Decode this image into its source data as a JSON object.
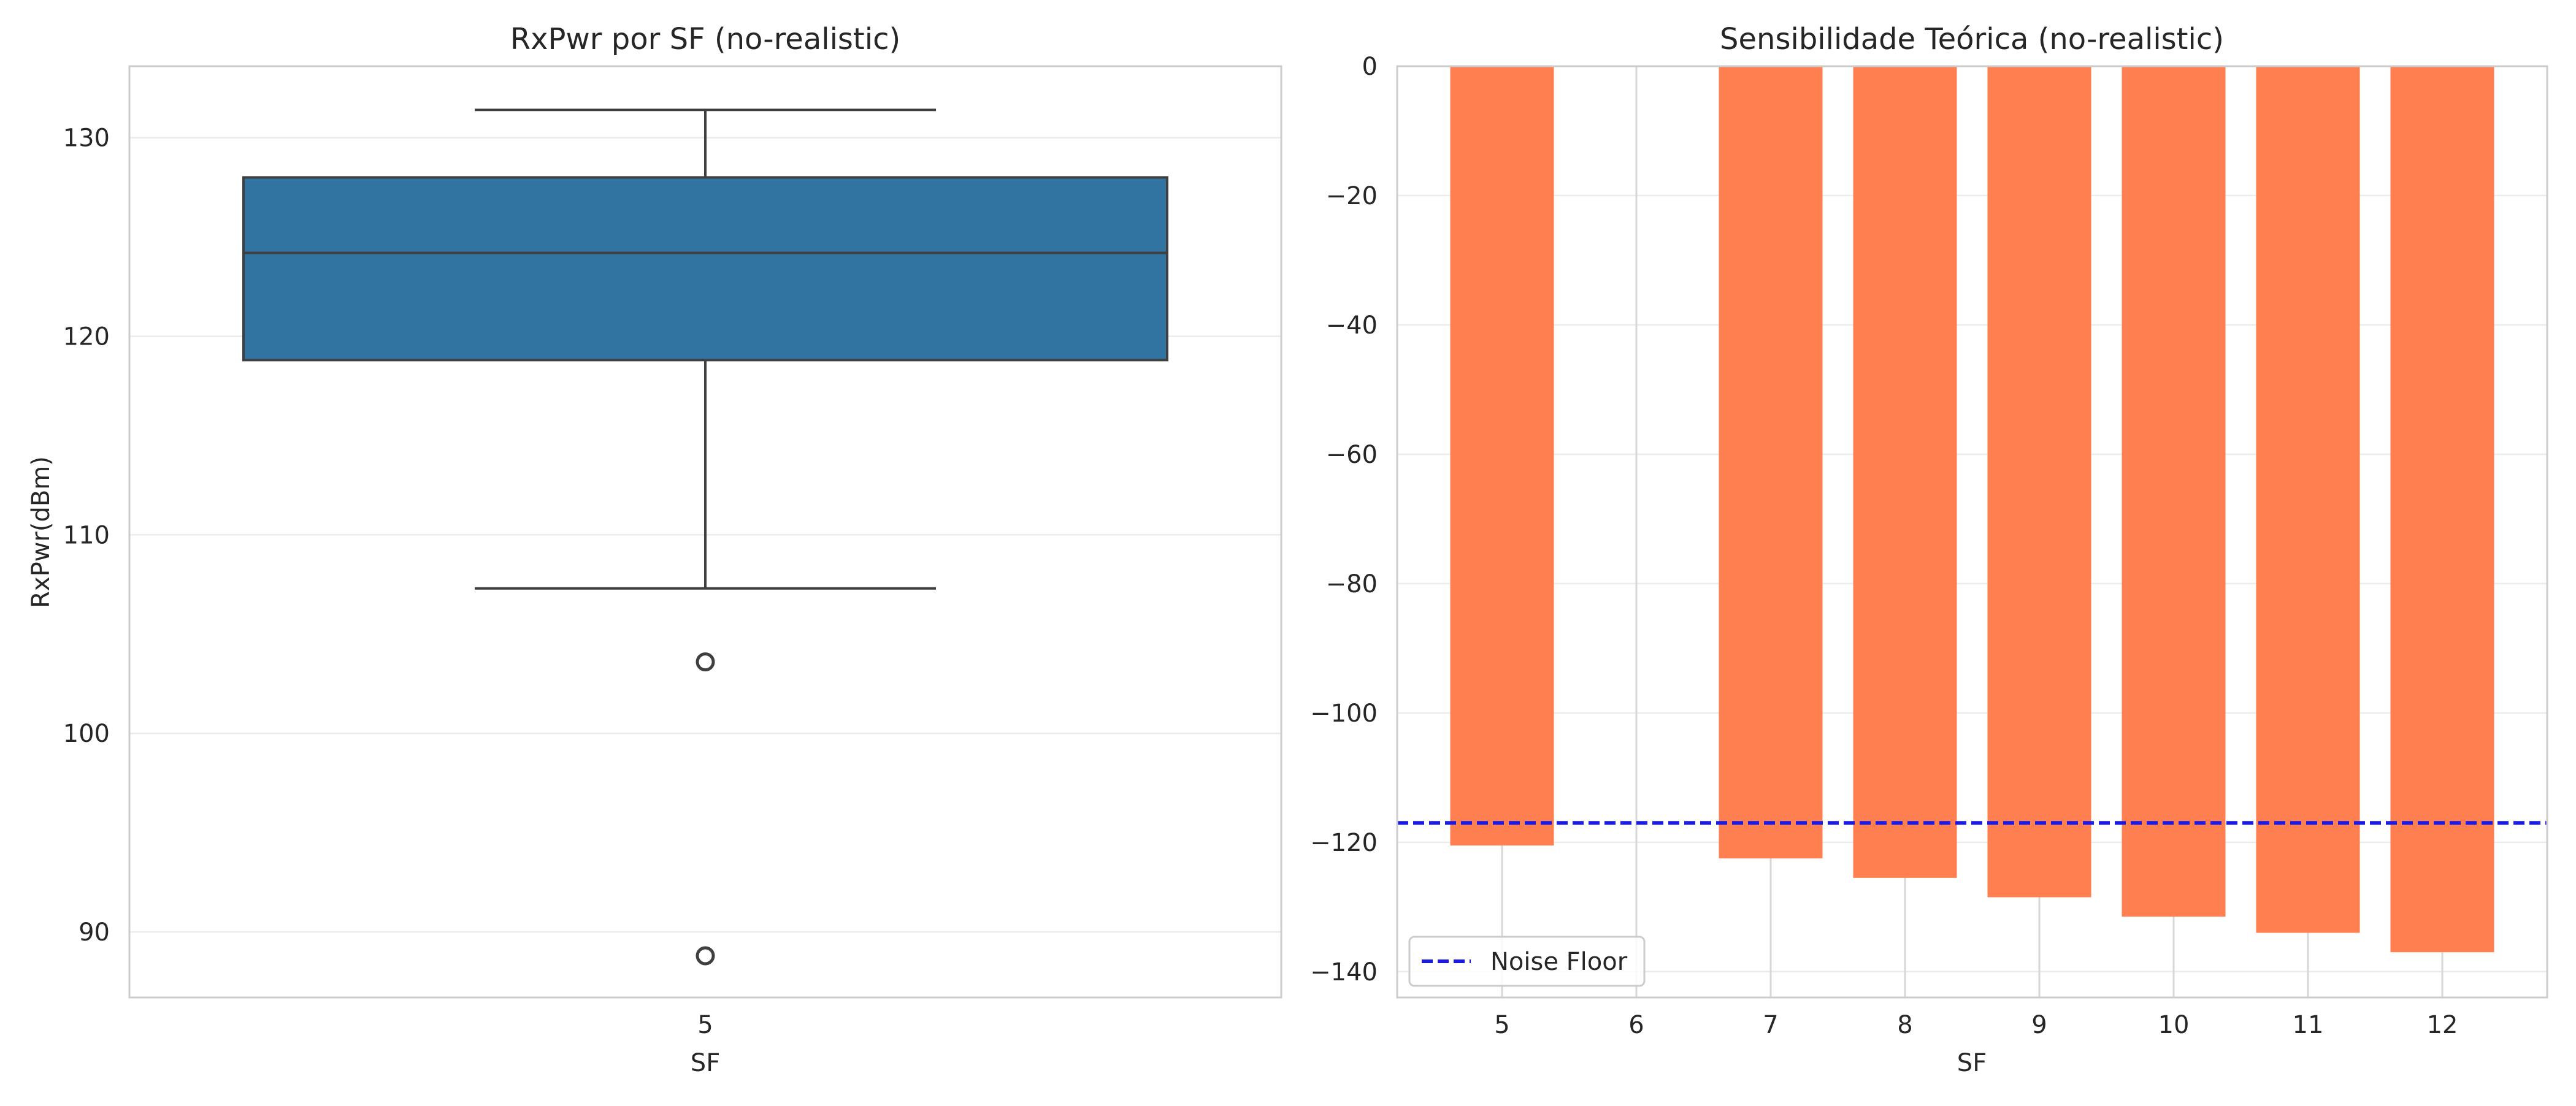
{
  "chart_data": [
    {
      "type": "box",
      "title": "RxPwr por SF (no-realistic)",
      "xlabel": "SF",
      "ylabel": "RxPwr(dBm)",
      "categories": [
        "5"
      ],
      "ylim": [
        86.7,
        133.6
      ],
      "yticks": [
        90,
        100,
        110,
        120,
        130
      ],
      "grid": "horizontal",
      "box": {
        "category": "5",
        "whisker_low": 107.3,
        "q1": 118.8,
        "median": 124.2,
        "q3": 128.0,
        "whisker_high": 131.4,
        "outliers": [
          103.6,
          88.8
        ]
      },
      "colors": {
        "box": "#3274a1",
        "line": "#3f3f3f"
      }
    },
    {
      "type": "bar",
      "title": "Sensibilidade Teórica (no-realistic)",
      "xlabel": "SF",
      "ylabel": "",
      "categories": [
        "5",
        "6",
        "7",
        "8",
        "9",
        "10",
        "11",
        "12"
      ],
      "values": [
        -120.5,
        null,
        -122.5,
        -125.5,
        -128.5,
        -131.5,
        -134,
        -137
      ],
      "ylim": [
        -144,
        0
      ],
      "yticks": [
        0,
        -20,
        -40,
        -60,
        -80,
        -100,
        -120,
        -140
      ],
      "grid": "both",
      "noise_floor": {
        "label": "Noise Floor",
        "value": -117,
        "color": "#1a1ae6"
      },
      "legend_position": "lower-left",
      "colors": {
        "bar": "#ff7f50"
      }
    }
  ]
}
